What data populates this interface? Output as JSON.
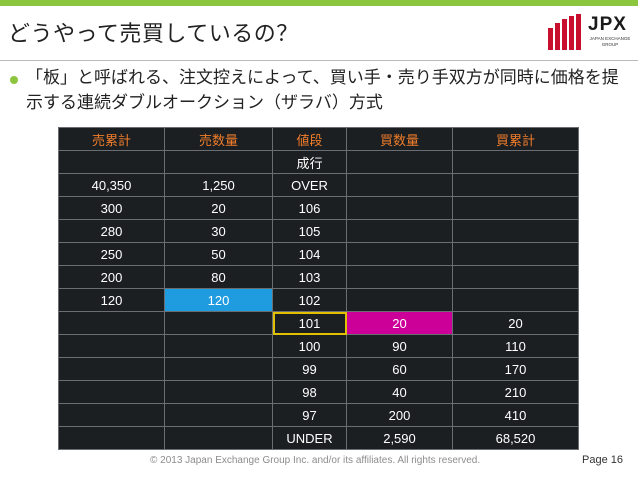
{
  "title": "どうやって売買しているの？",
  "logo": {
    "name": "JPX",
    "subtitle": "JAPAN EXCHANGE GROUP",
    "accent": "#c8102e"
  },
  "bullet": "「板」と呼ばれる、注文控えによって、買い手・売り手双方が同時に価格を提示する連続ダブルオークション（ザラバ）方式",
  "colors": {
    "green": "#8cc63e",
    "header": "#f07d2a",
    "blue": "#1f9be0",
    "magenta": "#cc0099",
    "yellow": "#e0c000"
  },
  "table": {
    "headers": [
      "売累計",
      "売数量",
      "値段",
      "買数量",
      "買累計"
    ],
    "rows": [
      [
        "",
        "",
        "成行",
        "",
        ""
      ],
      [
        "40,350",
        "1,250",
        "OVER",
        "",
        ""
      ],
      [
        "300",
        "20",
        "106",
        "",
        ""
      ],
      [
        "280",
        "30",
        "105",
        "",
        ""
      ],
      [
        "250",
        "50",
        "104",
        "",
        ""
      ],
      [
        "200",
        "80",
        "103",
        "",
        ""
      ],
      [
        "120",
        "120",
        "102",
        "",
        ""
      ],
      [
        "",
        "",
        "101",
        "20",
        "20"
      ],
      [
        "",
        "",
        "100",
        "90",
        "110"
      ],
      [
        "",
        "",
        "99",
        "60",
        "170"
      ],
      [
        "",
        "",
        "98",
        "40",
        "210"
      ],
      [
        "",
        "",
        "97",
        "200",
        "410"
      ],
      [
        "",
        "",
        "UNDER",
        "2,590",
        "68,520"
      ]
    ]
  },
  "footer": "© 2013 Japan Exchange Group Inc. and/or its affiliates. All rights reserved.",
  "page": "Page 16"
}
